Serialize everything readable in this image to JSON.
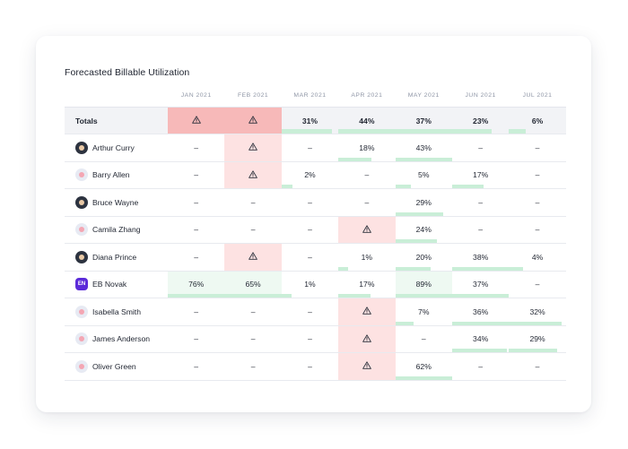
{
  "title": "Forecasted Billable Utilization",
  "months": [
    "JAN 2021",
    "FEB 2021",
    "MAR 2021",
    "APR 2021",
    "MAY 2021",
    "JUN 2021",
    "JUL 2021"
  ],
  "totals": {
    "label": "Totals",
    "cells": [
      {
        "alert": true
      },
      {
        "alert": true
      },
      {
        "value": "31%",
        "level": 0.31
      },
      {
        "value": "44%",
        "level": 0.44
      },
      {
        "value": "37%",
        "level": 0.37
      },
      {
        "value": "23%",
        "level": 0.23
      },
      {
        "value": "6%",
        "level": 0.06
      }
    ]
  },
  "rows": [
    {
      "name": "Arthur Curry",
      "avatar": "dark",
      "cells": [
        {
          "value": "–"
        },
        {
          "alert": true
        },
        {
          "value": "–"
        },
        {
          "value": "18%",
          "level": 0.18
        },
        {
          "value": "43%",
          "level": 0.43
        },
        {
          "value": "–"
        },
        {
          "value": "–"
        }
      ]
    },
    {
      "name": "Barry Allen",
      "avatar": "light",
      "cells": [
        {
          "value": "–"
        },
        {
          "alert": true
        },
        {
          "value": "2%",
          "level": 0.02
        },
        {
          "value": "–"
        },
        {
          "value": "5%",
          "level": 0.05
        },
        {
          "value": "17%",
          "level": 0.17
        },
        {
          "value": "–"
        }
      ]
    },
    {
      "name": "Bruce Wayne",
      "avatar": "dark",
      "cells": [
        {
          "value": "–"
        },
        {
          "value": "–"
        },
        {
          "value": "–"
        },
        {
          "value": "–"
        },
        {
          "value": "29%",
          "level": 0.29
        },
        {
          "value": "–"
        },
        {
          "value": "–"
        }
      ]
    },
    {
      "name": "Camila Zhang",
      "avatar": "light",
      "cells": [
        {
          "value": "–"
        },
        {
          "value": "–"
        },
        {
          "value": "–"
        },
        {
          "alert": true
        },
        {
          "value": "24%",
          "level": 0.24
        },
        {
          "value": "–"
        },
        {
          "value": "–"
        }
      ]
    },
    {
      "name": "Diana Prince",
      "avatar": "dark",
      "cells": [
        {
          "value": "–"
        },
        {
          "alert": true
        },
        {
          "value": "–"
        },
        {
          "value": "1%",
          "level": 0.01
        },
        {
          "value": "20%",
          "level": 0.2
        },
        {
          "value": "38%",
          "level": 0.38
        },
        {
          "value": "4%",
          "level": 0.04
        }
      ]
    },
    {
      "name": "EB Novak",
      "avatar": "purple",
      "initials": "EN",
      "cells": [
        {
          "value": "76%",
          "level": 0.76,
          "tint": true
        },
        {
          "value": "65%",
          "level": 0.65,
          "tint": true
        },
        {
          "value": "1%",
          "level": 0.01
        },
        {
          "value": "17%",
          "level": 0.17
        },
        {
          "value": "89%",
          "level": 0.89,
          "tint": true
        },
        {
          "value": "37%",
          "level": 0.37
        },
        {
          "value": "–"
        }
      ]
    },
    {
      "name": "Isabella Smith",
      "avatar": "light",
      "cells": [
        {
          "value": "–"
        },
        {
          "value": "–"
        },
        {
          "value": "–"
        },
        {
          "alert": true
        },
        {
          "value": "7%",
          "level": 0.07
        },
        {
          "value": "36%",
          "level": 0.36
        },
        {
          "value": "32%",
          "level": 0.32
        }
      ]
    },
    {
      "name": "James Anderson",
      "avatar": "light",
      "cells": [
        {
          "value": "–"
        },
        {
          "value": "–"
        },
        {
          "value": "–"
        },
        {
          "alert": true
        },
        {
          "value": "–"
        },
        {
          "value": "34%",
          "level": 0.34
        },
        {
          "value": "29%",
          "level": 0.29
        }
      ]
    },
    {
      "name": "Oliver Green",
      "avatar": "light",
      "cells": [
        {
          "value": "–"
        },
        {
          "value": "–"
        },
        {
          "value": "–"
        },
        {
          "alert": true
        },
        {
          "value": "62%",
          "level": 0.62
        },
        {
          "value": "–"
        },
        {
          "value": "–"
        }
      ]
    }
  ],
  "colors": {
    "alert_cell": "#fde2e2",
    "alert_total": "#f7b9b9",
    "bar": "#c9eed7",
    "accent_purple": "#5b2bd9"
  },
  "icons": {
    "alert": "warning-triangle-icon",
    "avatar": "user-avatar-icon"
  }
}
